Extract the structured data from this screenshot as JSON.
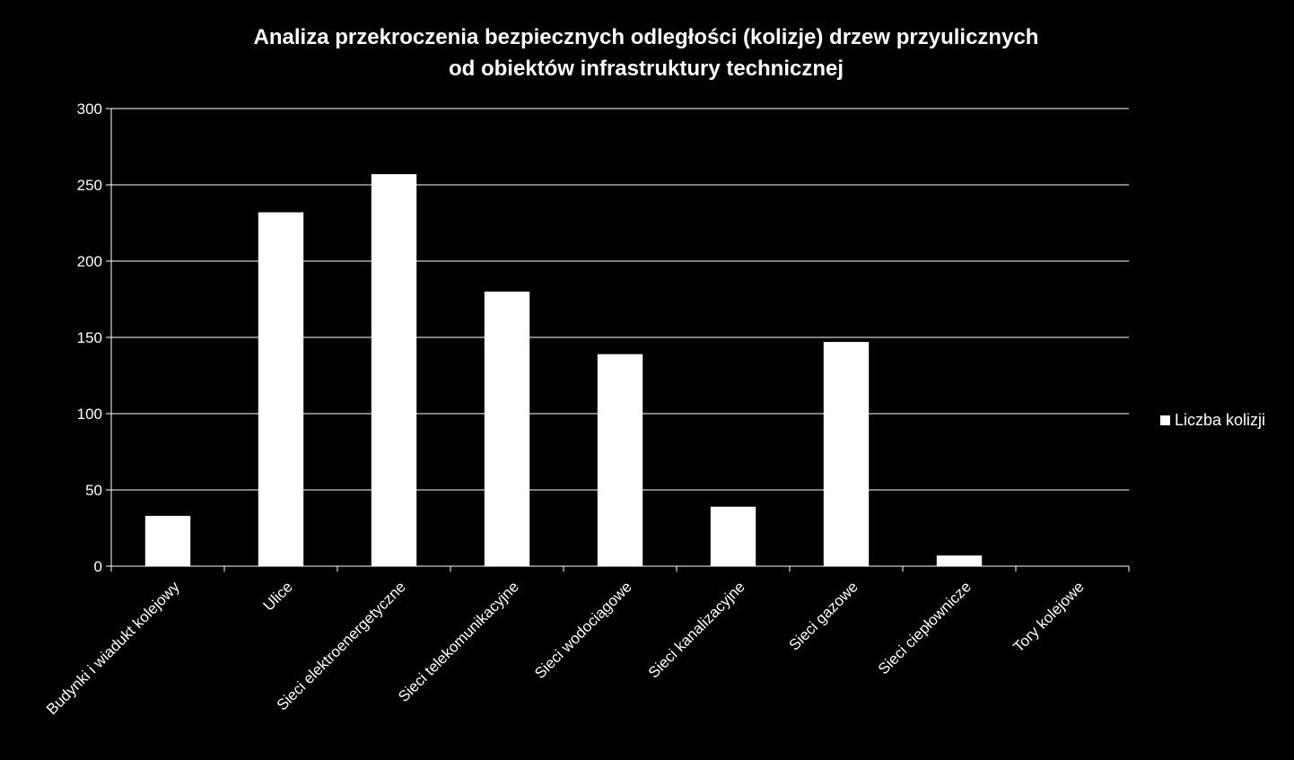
{
  "chart_data": {
    "type": "bar",
    "title_line1": "Analiza przekroczenia bezpiecznych odległości (kolizje) drzew przyulicznych",
    "title_line2": "od obiektów infrastruktury technicznej",
    "categories": [
      "Budynki i wiadukt kolejowy",
      "Ulice",
      "Sieci elektroenergetyczne",
      "Sieci telekomunikacyjne",
      "Sieci wodociągowe",
      "Sieci kanalizacyjne",
      "Sieci gazowe",
      "Sieci ciepłownicze",
      "Tory kolejowe"
    ],
    "series": [
      {
        "name": "Liczba kolizji",
        "values": [
          33,
          232,
          257,
          180,
          139,
          39,
          147,
          7,
          0
        ]
      }
    ],
    "ylim": [
      0,
      300
    ],
    "yticks": [
      "0",
      "50",
      "100",
      "150",
      "200",
      "250",
      "300"
    ],
    "grid": true,
    "legend_position": "right",
    "colors": {
      "background": "#000000",
      "bar": "#ffffff",
      "grid": "#ffffff",
      "text": "#ffffff"
    }
  }
}
